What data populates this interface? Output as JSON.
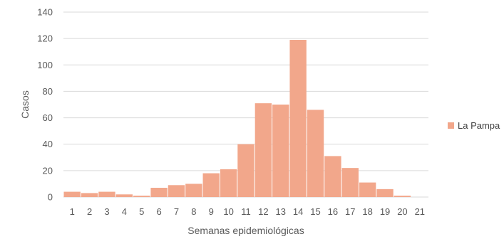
{
  "chart_data": {
    "type": "bar",
    "categories": [
      "1",
      "2",
      "3",
      "4",
      "5",
      "6",
      "7",
      "8",
      "9",
      "10",
      "11",
      "12",
      "13",
      "14",
      "15",
      "16",
      "17",
      "18",
      "19",
      "20",
      "21"
    ],
    "series": [
      {
        "name": "La Pampa",
        "color": "#f2a78b",
        "values": [
          4,
          3,
          4,
          2,
          1,
          7,
          9,
          10,
          18,
          21,
          40,
          71,
          70,
          119,
          66,
          31,
          22,
          11,
          6,
          1,
          0
        ]
      }
    ],
    "xlabel": "Semanas epidemiológicas",
    "ylabel": "Casos",
    "ylim": [
      0,
      140
    ],
    "yticks": [
      0,
      20,
      40,
      60,
      80,
      100,
      120,
      140
    ],
    "grid": true,
    "gridColor": "#d9d9d9",
    "legendPosition": "right"
  }
}
